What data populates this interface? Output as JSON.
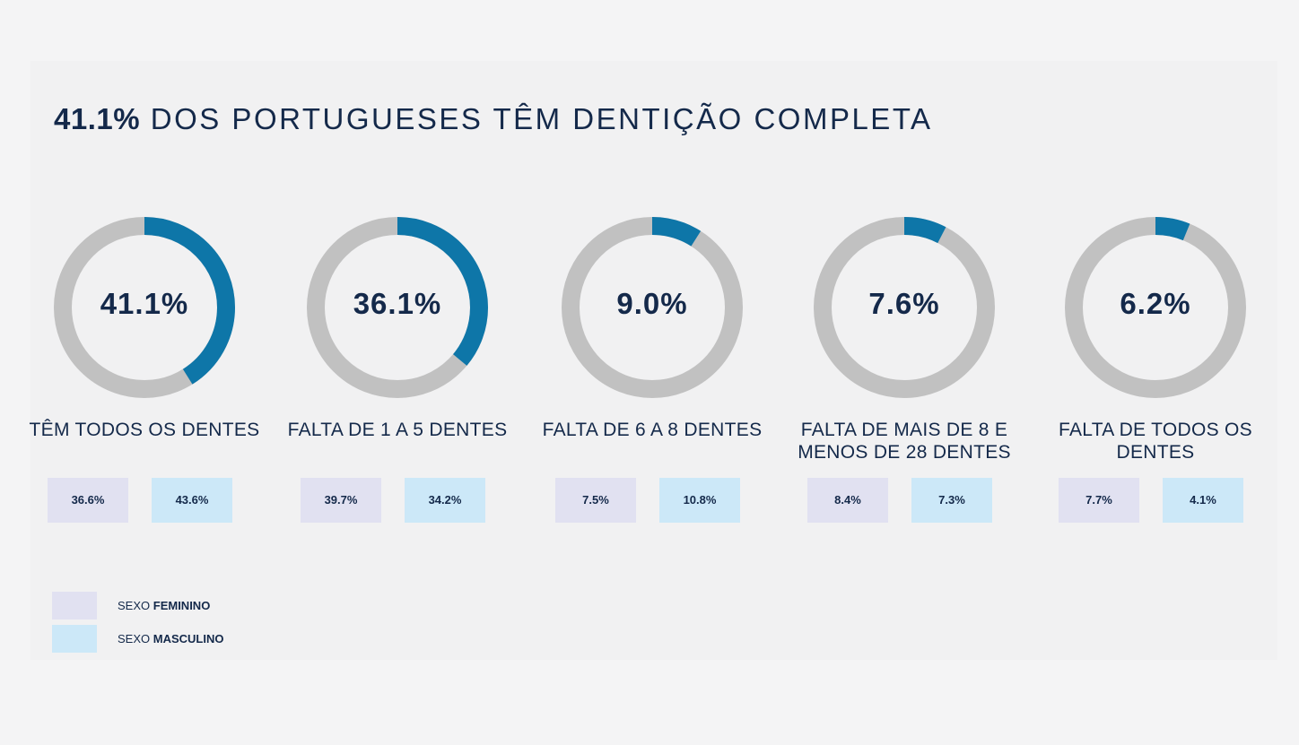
{
  "title": {
    "highlight": "41.1%",
    "rest": "DOS PORTUGUESES TÊM DENTIÇÃO COMPLETA"
  },
  "colors": {
    "ring_track": "#c1c1c1",
    "ring_fill": "#0e76a8",
    "feminino_box": "#e1e1f1",
    "masculino_box": "#cce8f8",
    "text": "#14294a"
  },
  "chart_data": {
    "type": "donut",
    "title": "41.1% DOS PORTUGUESES TÊM DENTIÇÃO COMPLETA",
    "categories": [
      "TÊM TODOS OS DENTES",
      "FALTA DE 1 A 5 DENTES",
      "FALTA DE 6 A 8 DENTES",
      "FALTA DE MAIS DE 8 E MENOS DE 28 DENTES",
      "FALTA DE TODOS OS DENTES"
    ],
    "items": [
      {
        "value": 41.1,
        "value_label": "41.1%",
        "label": "TÊM TODOS OS DENTES",
        "feminino": 36.6,
        "feminino_label": "36.6%",
        "masculino": 43.6,
        "masculino_label": "43.6%"
      },
      {
        "value": 36.1,
        "value_label": "36.1%",
        "label": "FALTA DE 1 A 5 DENTES",
        "feminino": 39.7,
        "feminino_label": "39.7%",
        "masculino": 34.2,
        "masculino_label": "34.2%"
      },
      {
        "value": 9.0,
        "value_label": "9.0%",
        "label": "FALTA DE 6 A 8 DENTES",
        "feminino": 7.5,
        "feminino_label": "7.5%",
        "masculino": 10.8,
        "masculino_label": "10.8%"
      },
      {
        "value": 7.6,
        "value_label": "7.6%",
        "label": "FALTA DE MAIS DE 8 E MENOS DE 28 DENTES",
        "feminino": 8.4,
        "feminino_label": "8.4%",
        "masculino": 7.3,
        "masculino_label": "7.3%"
      },
      {
        "value": 6.2,
        "value_label": "6.2%",
        "label": "FALTA DE TODOS OS DENTES",
        "feminino": 7.7,
        "feminino_label": "7.7%",
        "masculino": 4.1,
        "masculino_label": "4.1%"
      }
    ],
    "legend": [
      {
        "prefix": "SEXO",
        "name": "FEMININO"
      },
      {
        "prefix": "SEXO",
        "name": "MASCULINO"
      }
    ],
    "max": 100
  }
}
